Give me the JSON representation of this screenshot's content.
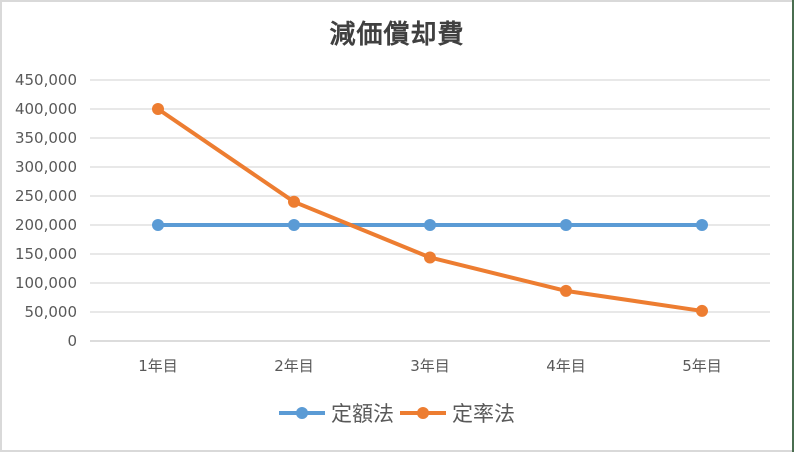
{
  "chart_data": {
    "type": "line",
    "title": "減価償却費",
    "categories": [
      "1年目",
      "2年目",
      "3年目",
      "4年目",
      "5年目"
    ],
    "series": [
      {
        "name": "定額法",
        "color": "#5b9bd5",
        "values": [
          200000,
          200000,
          200000,
          200000,
          200000
        ]
      },
      {
        "name": "定率法",
        "color": "#ed7d31",
        "values": [
          400000,
          240000,
          144000,
          86400,
          51840
        ]
      }
    ],
    "xlabel": "",
    "ylabel": "",
    "ylim": [
      0,
      450000
    ],
    "yticks": [
      "0",
      "50,000",
      "100,000",
      "150,000",
      "200,000",
      "250,000",
      "300,000",
      "350,000",
      "400,000",
      "450,000"
    ],
    "grid": true,
    "legend_position": "bottom",
    "markers": true
  },
  "legend": {
    "items": [
      {
        "label": "定額法",
        "color": "#5b9bd5"
      },
      {
        "label": "定率法",
        "color": "#ed7d31"
      }
    ]
  }
}
